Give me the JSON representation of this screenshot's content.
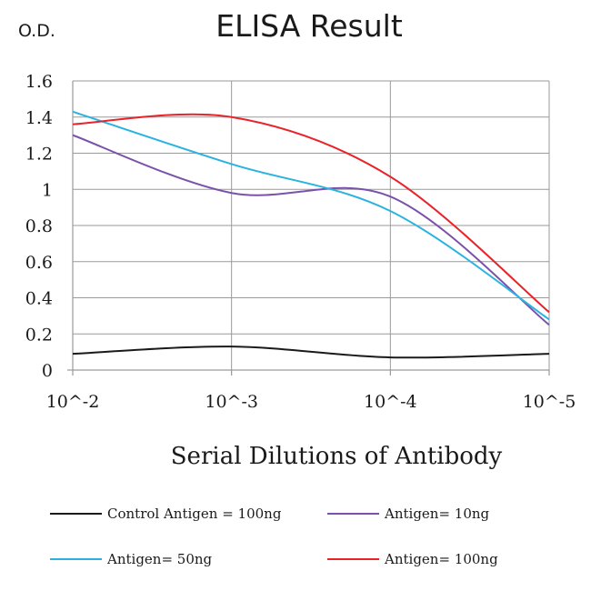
{
  "chart_data": {
    "type": "line",
    "title": "ELISA Result",
    "ylabel": "O.D.",
    "xlabel": "Serial Dilutions of Antibody",
    "categories": [
      "10^-2",
      "10^-3",
      "10^-4",
      "10^-5"
    ],
    "ylim": [
      0,
      1.6
    ],
    "yticks": [
      "0",
      "0.2",
      "0.4",
      "0.6",
      "0.8",
      "1",
      "1.2",
      "1.4",
      "1.6"
    ],
    "grid": "vertical and horizontal",
    "legend_position": "bottom",
    "series": [
      {
        "name": "Control Antigen = 100ng",
        "color": "#1a1a1a",
        "values": [
          0.09,
          0.13,
          0.07,
          0.09
        ]
      },
      {
        "name": "Antigen= 10ng",
        "color": "#7b52ab",
        "values": [
          1.3,
          0.98,
          0.96,
          0.25
        ]
      },
      {
        "name": "Antigen= 50ng",
        "color": "#2bb3e0",
        "values": [
          1.43,
          1.14,
          0.88,
          0.28
        ]
      },
      {
        "name": "Antigen= 100ng",
        "color": "#e8242a",
        "values": [
          1.36,
          1.4,
          1.07,
          0.32
        ]
      }
    ]
  }
}
